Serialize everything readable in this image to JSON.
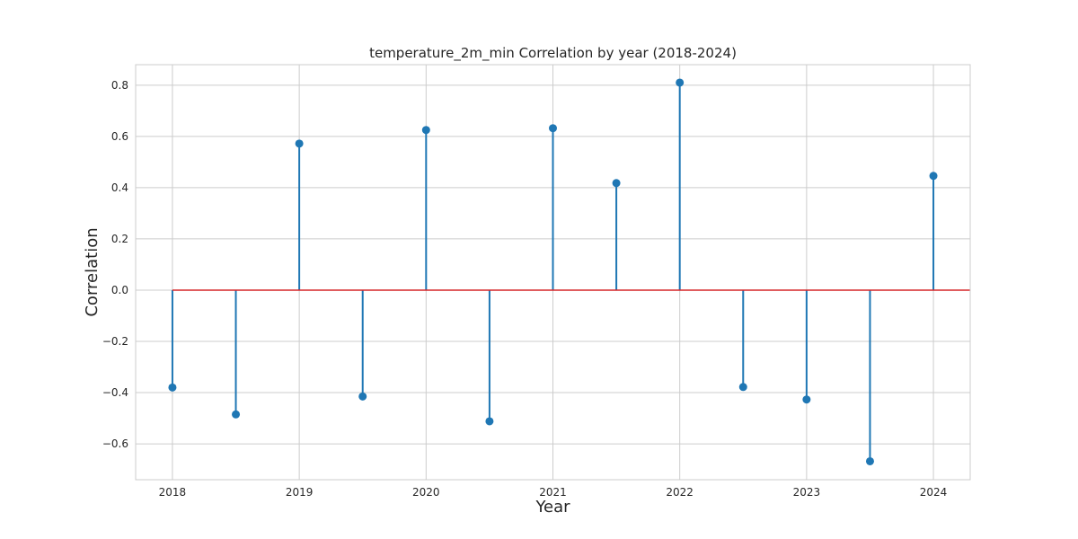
{
  "chart_data": {
    "type": "stem",
    "title": "temperature_2m_min Correlation by year (2018-2024)",
    "xlabel": "Year",
    "ylabel": "Correlation",
    "xlim": [
      2017.71,
      2024.29
    ],
    "ylim": [
      -0.74,
      0.88
    ],
    "x_ticks": [
      "2018",
      "2019",
      "2020",
      "2021",
      "2022",
      "2023",
      "2024"
    ],
    "y_ticks": [
      "0.8",
      "0.6",
      "0.4",
      "0.2",
      "0.0",
      "−0.2",
      "−0.4",
      "−0.6"
    ],
    "grid": true,
    "baseline": 0,
    "colors": {
      "stem": "#1f77b4",
      "baseline": "#d62728",
      "grid": "#cccccc",
      "frame": "#cccccc"
    },
    "points": [
      {
        "x": 2018.0,
        "y": -0.38
      },
      {
        "x": 2018.5,
        "y": -0.485
      },
      {
        "x": 2019.0,
        "y": 0.572
      },
      {
        "x": 2019.5,
        "y": -0.415
      },
      {
        "x": 2020.0,
        "y": 0.625
      },
      {
        "x": 2020.5,
        "y": -0.512
      },
      {
        "x": 2021.0,
        "y": 0.632
      },
      {
        "x": 2021.5,
        "y": 0.418
      },
      {
        "x": 2022.0,
        "y": 0.81
      },
      {
        "x": 2022.5,
        "y": -0.378
      },
      {
        "x": 2023.0,
        "y": -0.427
      },
      {
        "x": 2023.5,
        "y": -0.668
      },
      {
        "x": 2024.0,
        "y": 0.446
      }
    ]
  }
}
